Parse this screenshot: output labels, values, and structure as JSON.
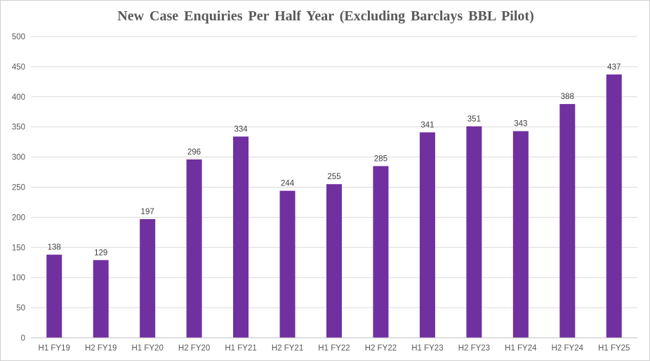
{
  "chart_data": {
    "type": "bar",
    "title": "New Case Enquiries  Per Half Year (Excluding  Barclays  BBL Pilot)",
    "xlabel": "",
    "ylabel": "",
    "categories": [
      "H1 FY19",
      "H2 FY19",
      "H1 FY20",
      "H2 FY20",
      "H1 FY21",
      "H2 FY21",
      "H1 FY22",
      "H2 FY22",
      "H1 FY23",
      "H2 FY23",
      "H1 FY24",
      "H2 FY24",
      "H1 FY25"
    ],
    "values": [
      138,
      129,
      197,
      296,
      334,
      244,
      255,
      285,
      341,
      351,
      343,
      388,
      437
    ],
    "ylim": [
      0,
      500
    ],
    "yticks": [
      0,
      50,
      100,
      150,
      200,
      250,
      300,
      350,
      400,
      450,
      500
    ],
    "grid": true,
    "legend": "none",
    "bar_color": "#7030a0",
    "grid_color": "#d9d9d9"
  }
}
